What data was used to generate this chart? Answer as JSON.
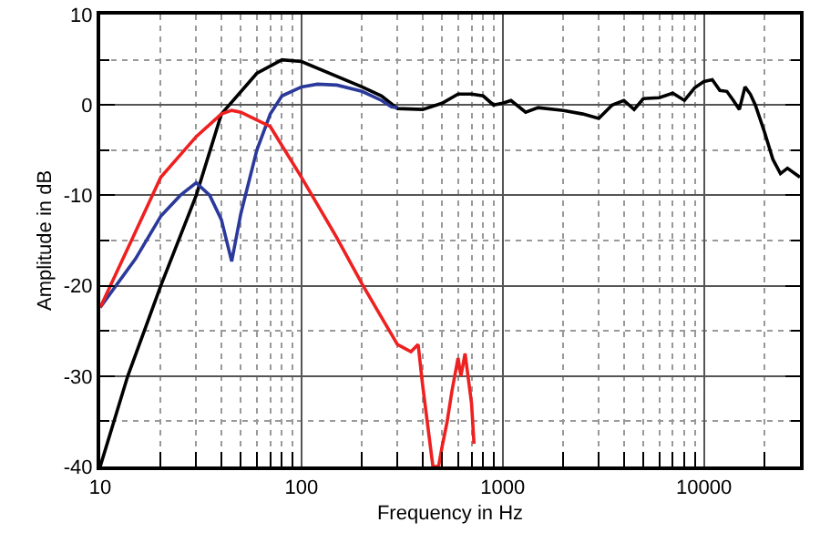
{
  "chart_data": {
    "type": "line",
    "xlabel": "Frequency in Hz",
    "ylabel": "Amplitude in dB",
    "log": "x",
    "grid": true,
    "marker": "none",
    "line_style": "solid",
    "xlim": [
      10,
      30000
    ],
    "xticks": [
      10,
      100,
      1000,
      10000
    ],
    "ylim": [
      -40,
      10
    ],
    "yticks": [
      -40,
      -30,
      -20,
      -10,
      0,
      10
    ],
    "series": [
      {
        "color": "#000000",
        "x": [
          10,
          13.7,
          20,
          30,
          40,
          60,
          80,
          100,
          200,
          250,
          300,
          400,
          500,
          600,
          700,
          800,
          900,
          1000,
          1100,
          1300,
          1500,
          2000,
          2500,
          3000,
          3500,
          4000,
          4500,
          5000,
          6000,
          7000,
          8000,
          9000,
          10000,
          11000,
          12000,
          13000,
          14000,
          15000,
          16000,
          17000,
          18000,
          20000,
          22000,
          24000,
          26000,
          30000
        ],
        "values": [
          -40,
          -30,
          -20,
          -10,
          -1,
          3.5,
          5,
          4.8,
          2,
          1,
          -0.4,
          -0.5,
          0.2,
          1.2,
          1.2,
          1,
          0,
          0.2,
          0.5,
          -0.8,
          -0.3,
          -0.6,
          -1,
          -1.5,
          0,
          0.5,
          -0.5,
          0.7,
          0.8,
          1.3,
          0.5,
          1.9,
          2.6,
          2.8,
          1.6,
          1.5,
          0.5,
          -0.5,
          2,
          1.2,
          0,
          -3,
          -6,
          -7.6,
          -7,
          -8
        ]
      },
      {
        "color": "#2b3a9a",
        "x": [
          10,
          15,
          20,
          25,
          30,
          35,
          40,
          45,
          50,
          60,
          70,
          80,
          100,
          120,
          150,
          200,
          250,
          280,
          300
        ],
        "values": [
          -22.4,
          -17,
          -12.3,
          -10,
          -8.6,
          -10,
          -12.7,
          -17.3,
          -12,
          -5,
          -1,
          1,
          2,
          2.3,
          2.2,
          1.5,
          0.5,
          -0.2,
          -0.3
        ]
      },
      {
        "color": "#ee2020",
        "x": [
          10,
          15,
          20,
          30,
          40,
          45,
          50,
          70,
          100,
          150,
          200,
          250,
          300,
          350,
          380,
          400,
          450,
          480,
          500,
          530,
          560,
          600,
          620,
          650,
          700,
          720
        ],
        "values": [
          -22.4,
          -14,
          -8,
          -3.5,
          -1,
          -0.6,
          -0.8,
          -2.4,
          -8,
          -14.7,
          -19.8,
          -23.5,
          -26.5,
          -27.3,
          -26.5,
          -31,
          -40,
          -40,
          -37.8,
          -35,
          -31.6,
          -28,
          -30,
          -27.5,
          -33,
          -37.5
        ]
      }
    ]
  }
}
